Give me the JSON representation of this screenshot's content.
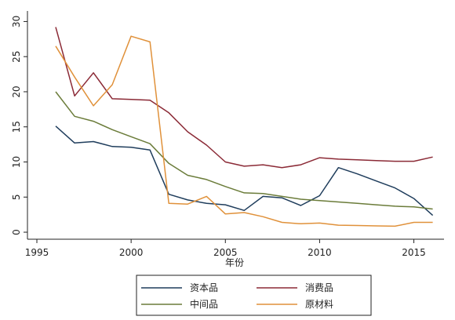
{
  "chart_data": {
    "type": "line",
    "title": "",
    "xlabel": "年份",
    "ylabel": "",
    "xlim": [
      1994.5,
      2016.6
    ],
    "ylim": [
      -1,
      31.5
    ],
    "x_ticks": [
      1995,
      2000,
      2005,
      2010,
      2015
    ],
    "y_ticks": [
      0,
      5,
      10,
      15,
      20,
      25,
      30
    ],
    "grid": false,
    "legend_position": "bottom",
    "x": [
      1996,
      1997,
      1998,
      1999,
      2000,
      2001,
      2002,
      2003,
      2004,
      2005,
      2006,
      2007,
      2008,
      2009,
      2010,
      2011,
      2012,
      2013,
      2014,
      2015,
      2016
    ],
    "series": [
      {
        "name": "资本品",
        "color": "#1f3d5c",
        "values": [
          15.1,
          12.7,
          12.9,
          12.2,
          12.1,
          11.7,
          5.4,
          4.6,
          4.1,
          3.9,
          3.1,
          5.1,
          4.9,
          3.8,
          5.2,
          9.2,
          8.3,
          7.3,
          6.3,
          4.8,
          2.4
        ]
      },
      {
        "name": "消费品",
        "color": "#8b2a36",
        "values": [
          29.2,
          19.4,
          22.7,
          19.0,
          18.9,
          18.8,
          17.0,
          14.3,
          12.4,
          10.0,
          9.4,
          9.6,
          9.2,
          9.6,
          10.6,
          10.4,
          10.3,
          10.2,
          10.1,
          10.1,
          10.7
        ]
      },
      {
        "name": "中间品",
        "color": "#6b7c3a",
        "values": [
          20.0,
          16.5,
          15.8,
          14.6,
          13.6,
          12.6,
          9.8,
          8.1,
          7.5,
          6.5,
          5.6,
          5.5,
          5.1,
          4.7,
          4.5,
          4.3,
          4.1,
          3.9,
          3.7,
          3.6,
          3.3
        ]
      },
      {
        "name": "原材料",
        "color": "#e0913a",
        "values": [
          26.5,
          22.1,
          18.0,
          21.0,
          27.9,
          27.1,
          4.1,
          4.0,
          5.1,
          2.6,
          2.8,
          2.2,
          1.4,
          1.2,
          1.3,
          1.0,
          0.95,
          0.9,
          0.85,
          1.4,
          1.4
        ]
      }
    ]
  }
}
